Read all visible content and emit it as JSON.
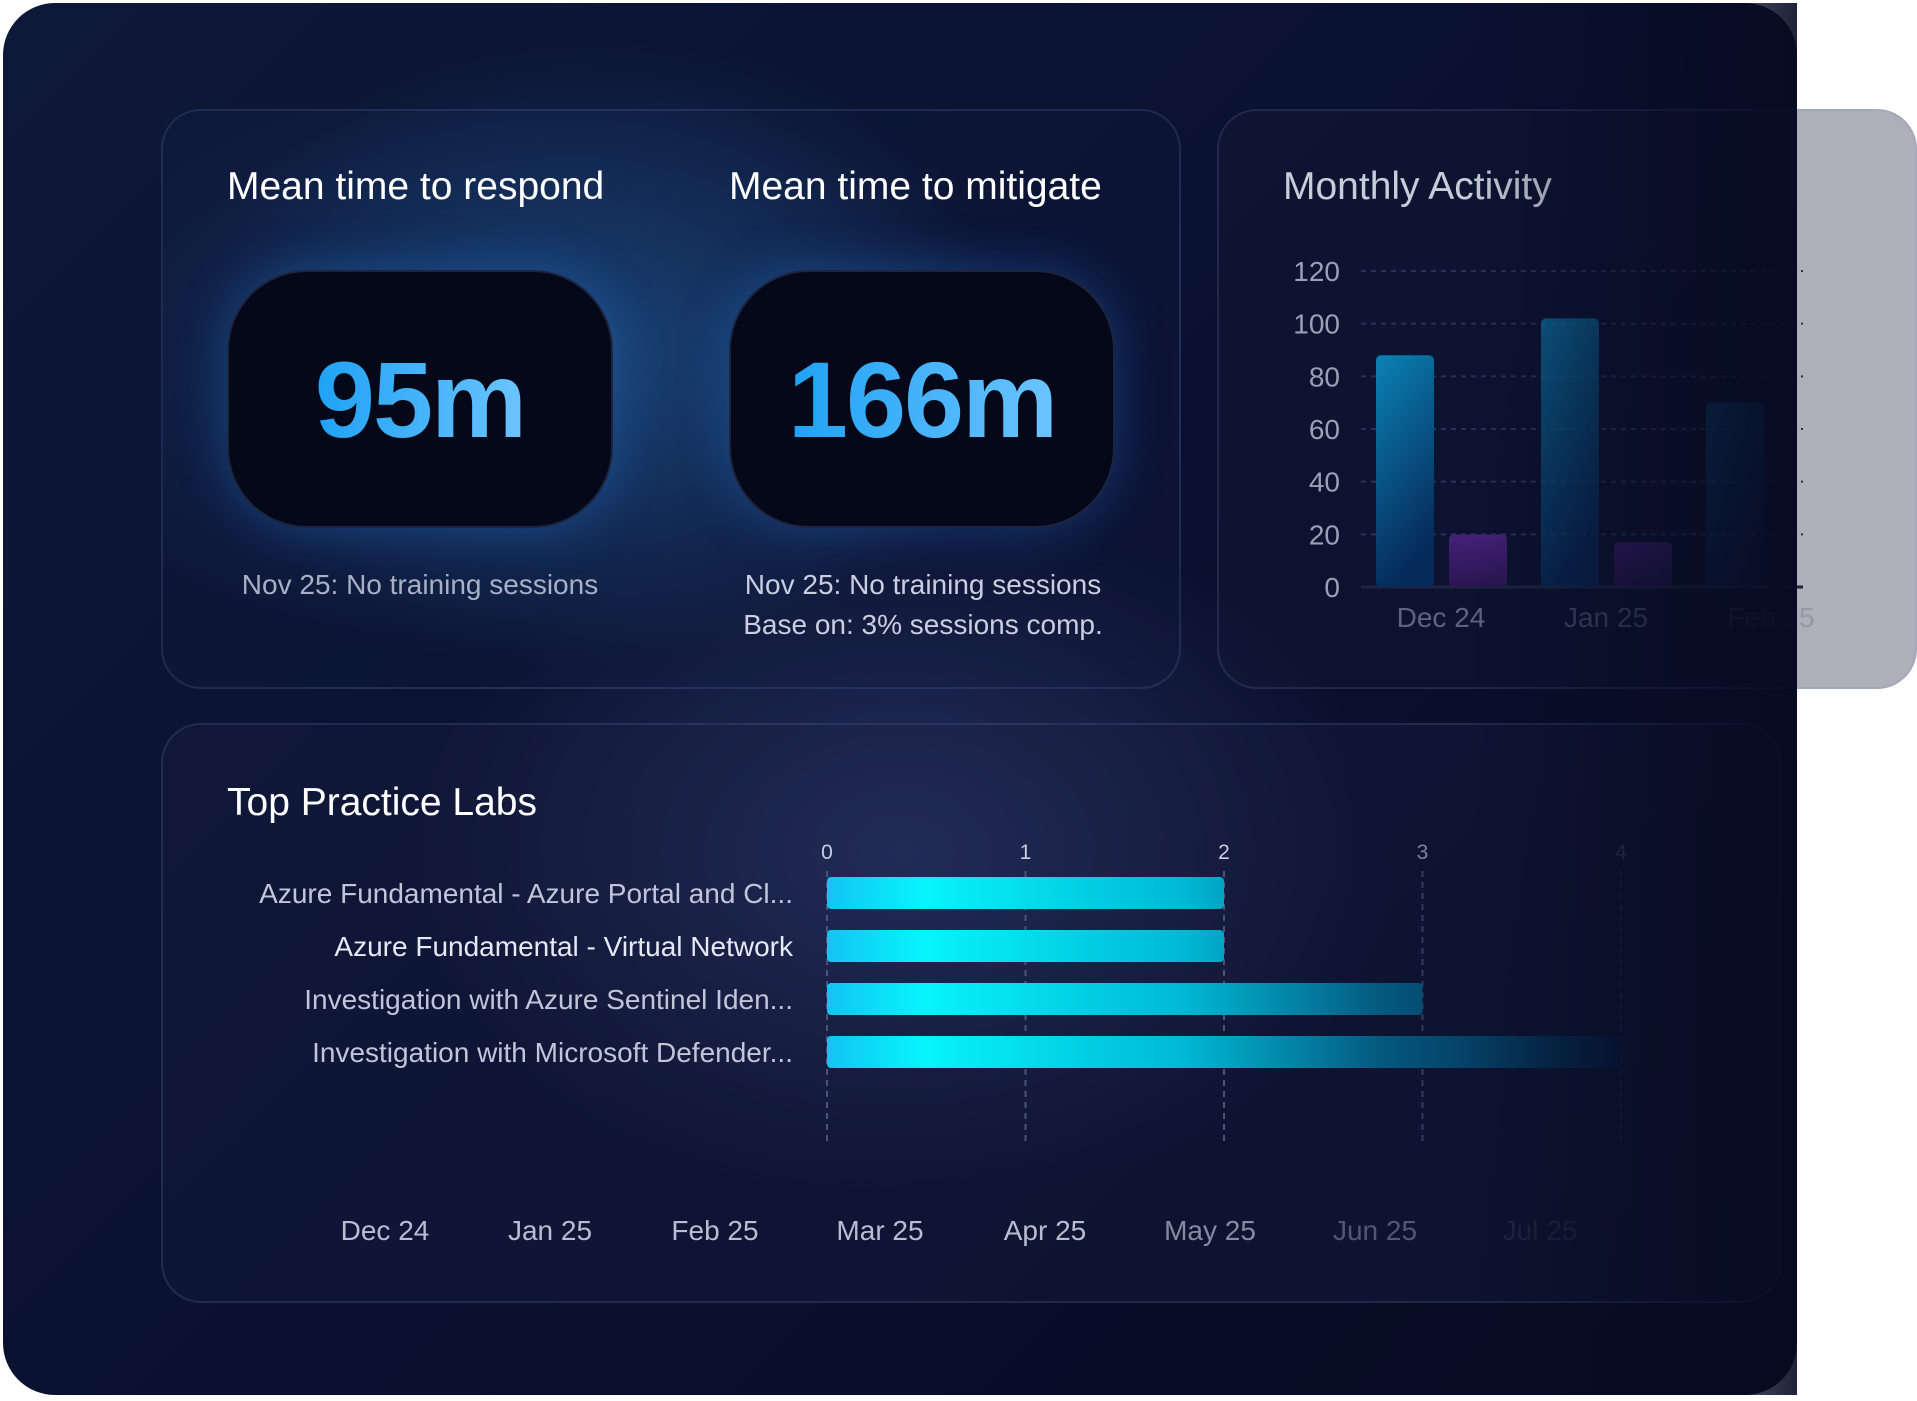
{
  "respond": {
    "title": "Mean time to respond",
    "value": "95m",
    "note": "Nov 25: No training sessions"
  },
  "mitigate": {
    "title": "Mean time to mitigate",
    "value": "166m",
    "note": "Nov 25: No training sessions",
    "note2": "Base on: 3% sessions comp."
  },
  "colors": {
    "accent": "#1fa2f5",
    "bar_blue": "#0a86b8",
    "bar_purple": "#4a2580",
    "lab_bar": "#0ff0ff"
  },
  "chart_data": [
    {
      "type": "bar",
      "title": "Monthly Activity",
      "categories": [
        "Dec 24",
        "Jan 25",
        "Feb 25"
      ],
      "ylim": [
        0,
        120
      ],
      "yticks": [
        0,
        20,
        40,
        60,
        80,
        100,
        120
      ],
      "grid": true,
      "series": [
        {
          "values": [
            88,
            102,
            70
          ]
        },
        {
          "values": [
            20,
            17,
            null
          ]
        }
      ]
    },
    {
      "type": "bar",
      "orientation": "horizontal",
      "title": "Top Practice Labs",
      "categories": [
        "Azure Fundamental - Azure Portal and Cl...",
        "Azure Fundamental - Virtual Network",
        "Investigation with Azure Sentinel Iden...",
        "Investigation with Microsoft Defender..."
      ],
      "values": [
        2,
        2,
        3,
        4
      ],
      "xlim": [
        0,
        4
      ],
      "xticks": [
        0,
        1,
        2,
        3,
        4
      ],
      "grid": true,
      "months": [
        "Dec 24",
        "Jan 25",
        "Feb 25",
        "Mar 25",
        "Apr 25",
        "May 25",
        "Jun 25",
        "Jul 25"
      ]
    }
  ]
}
